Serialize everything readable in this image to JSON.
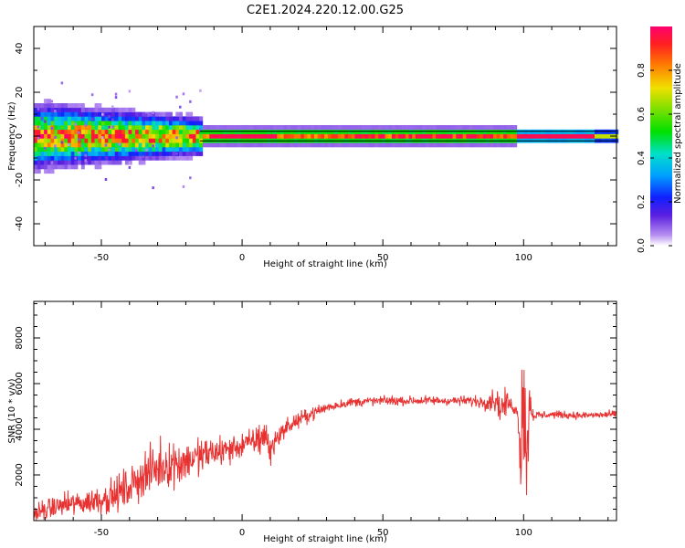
{
  "figure_title": "C2E1.2024.220.12.00.G25",
  "chart_data": [
    {
      "type": "heatmap",
      "xlabel": "Height of straight line (km)",
      "ylabel": "Frequency (Hz)",
      "xlim": [
        -74,
        133
      ],
      "ylim": [
        -50,
        50
      ],
      "xticks": [
        -50,
        0,
        50,
        100
      ],
      "yticks": [
        -40,
        -20,
        0,
        20,
        40
      ],
      "colorbar": {
        "label": "Normalized spectral amplitude",
        "range": [
          0.0,
          1.0
        ],
        "ticks": [
          "0.0",
          "0.2",
          "0.4",
          "0.6",
          "0.8"
        ]
      },
      "bands": [
        {
          "x_start": -74,
          "x_end": -15,
          "description": "noisy",
          "spread_hz": 8
        },
        {
          "x_start": -15,
          "x_end": 98,
          "description": "narrow",
          "spread_hz": 3
        },
        {
          "x_start": 98,
          "x_end": 133,
          "description": "peak",
          "spread_hz": 2
        }
      ]
    },
    {
      "type": "line",
      "xlabel": "Height of straight line (km)",
      "ylabel": "SNR (10 * v/v)",
      "xlim": [
        -74,
        133
      ],
      "ylim": [
        0,
        9600
      ],
      "xticks": [
        -50,
        0,
        50,
        100
      ],
      "yticks": [
        2000,
        4000,
        6000,
        8000
      ],
      "series": [
        {
          "name": "SNR",
          "color": "#e83232",
          "x": [
            -74,
            -65,
            -55,
            -45,
            -40,
            -35,
            -30,
            -25,
            -20,
            -15,
            -10,
            -5,
            0,
            5,
            8,
            10,
            12,
            15,
            20,
            25,
            30,
            35,
            40,
            50,
            60,
            70,
            80,
            85,
            90,
            92,
            94,
            96,
            98,
            99,
            100,
            101,
            102,
            103,
            104,
            105,
            110,
            120,
            133
          ],
          "y": [
            300,
            650,
            800,
            1100,
            1500,
            2000,
            2300,
            2500,
            2600,
            2800,
            3000,
            3100,
            3300,
            3500,
            3800,
            3000,
            3600,
            4000,
            4400,
            4700,
            4950,
            5100,
            5200,
            5250,
            5250,
            5250,
            5250,
            5200,
            5300,
            4900,
            5200,
            5000,
            4700,
            3000,
            6500,
            2000,
            5500,
            4700,
            4600,
            4600,
            4650,
            4600,
            4650
          ],
          "amplitude": [
            500,
            600,
            700,
            900,
            1100,
            1200,
            1300,
            1200,
            1200,
            1000,
            900,
            800,
            700,
            700,
            1600,
            700,
            600,
            500,
            400,
            350,
            300,
            250,
            250,
            250,
            250,
            250,
            250,
            350,
            700,
            900,
            600,
            300,
            300,
            3000,
            4000,
            3000,
            2000,
            400,
            250,
            250,
            200,
            200,
            200
          ]
        }
      ]
    }
  ]
}
